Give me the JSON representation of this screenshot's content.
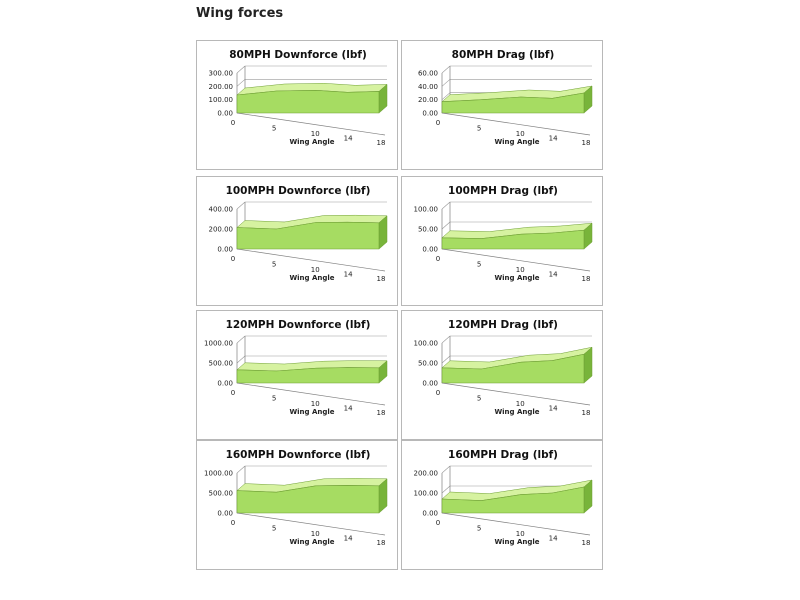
{
  "page": {
    "title": "Wing forces"
  },
  "colors": {
    "area_front": "#a6dc62",
    "area_top": "#d6f2a0",
    "area_side": "#78b43a",
    "area_stroke": "#6f9f35"
  },
  "chart_data": [
    {
      "type": "area",
      "title": "80MPH Downforce (lbf)",
      "xlabel": "Wing Angle",
      "ylabel": "",
      "x": [
        0,
        5,
        10,
        14,
        18
      ],
      "xticks": [
        "0",
        "5",
        "10",
        "14",
        "18"
      ],
      "yticks": [
        "0.00",
        "100.00",
        "200.00",
        "300.00"
      ],
      "ylim": [
        0,
        300
      ],
      "series": [
        {
          "values": [
            135,
            165,
            170,
            155,
            162
          ]
        }
      ]
    },
    {
      "type": "area",
      "title": "80MPH Drag (lbf)",
      "xlabel": "Wing Angle",
      "ylabel": "",
      "x": [
        0,
        5,
        10,
        14,
        18
      ],
      "xticks": [
        "0",
        "5",
        "10",
        "14",
        "18"
      ],
      "yticks": [
        "0.00",
        "20.00",
        "40.00",
        "60.00"
      ],
      "ylim": [
        0,
        60
      ],
      "series": [
        {
          "values": [
            17,
            20,
            24,
            22,
            30
          ]
        }
      ]
    },
    {
      "type": "area",
      "title": "100MPH Downforce (lbf)",
      "xlabel": "Wing Angle",
      "ylabel": "",
      "x": [
        0,
        5,
        10,
        14,
        18
      ],
      "xticks": [
        "0",
        "5",
        "10",
        "14",
        "18"
      ],
      "yticks": [
        "0.00",
        "200.00",
        "400.00"
      ],
      "ylim": [
        0,
        400
      ],
      "series": [
        {
          "values": [
            215,
            200,
            265,
            268,
            262
          ]
        }
      ]
    },
    {
      "type": "area",
      "title": "100MPH Drag (lbf)",
      "xlabel": "Wing Angle",
      "ylabel": "",
      "x": [
        0,
        5,
        10,
        14,
        18
      ],
      "xticks": [
        "0",
        "5",
        "10",
        "14",
        "18"
      ],
      "yticks": [
        "0.00",
        "50.00",
        "100.00"
      ],
      "ylim": [
        0,
        100
      ],
      "series": [
        {
          "values": [
            28,
            26,
            37,
            40,
            47
          ]
        }
      ]
    },
    {
      "type": "area",
      "title": "120MPH Downforce (lbf)",
      "xlabel": "Wing Angle",
      "ylabel": "",
      "x": [
        0,
        5,
        10,
        14,
        18
      ],
      "xticks": [
        "0",
        "5",
        "10",
        "14",
        "18"
      ],
      "yticks": [
        "0.00",
        "500.00",
        "1000.00"
      ],
      "ylim": [
        0,
        1000
      ],
      "series": [
        {
          "values": [
            330,
            300,
            370,
            385,
            380
          ]
        }
      ]
    },
    {
      "type": "area",
      "title": "120MPH Drag (lbf)",
      "xlabel": "Wing Angle",
      "ylabel": "",
      "x": [
        0,
        5,
        10,
        14,
        18
      ],
      "xticks": [
        "0",
        "5",
        "10",
        "14",
        "18"
      ],
      "yticks": [
        "0.00",
        "50.00",
        "100.00"
      ],
      "ylim": [
        0,
        100
      ],
      "series": [
        {
          "values": [
            38,
            35,
            52,
            56,
            72
          ]
        }
      ]
    },
    {
      "type": "area",
      "title": "160MPH Downforce (lbf)",
      "xlabel": "Wing Angle",
      "ylabel": "",
      "x": [
        0,
        5,
        10,
        14,
        18
      ],
      "xticks": [
        "0",
        "5",
        "10",
        "14",
        "18"
      ],
      "yticks": [
        "0.00",
        "500.00",
        "1000.00"
      ],
      "ylim": [
        0,
        1000
      ],
      "series": [
        {
          "values": [
            560,
            520,
            680,
            690,
            680
          ]
        }
      ]
    },
    {
      "type": "area",
      "title": "160MPH Drag (lbf)",
      "xlabel": "Wing Angle",
      "ylabel": "",
      "x": [
        0,
        5,
        10,
        14,
        18
      ],
      "xticks": [
        "0",
        "5",
        "10",
        "14",
        "18"
      ],
      "yticks": [
        "0.00",
        "100.00",
        "200.00"
      ],
      "ylim": [
        0,
        200
      ],
      "series": [
        {
          "values": [
            70,
            62,
            92,
            100,
            130
          ]
        }
      ]
    }
  ]
}
